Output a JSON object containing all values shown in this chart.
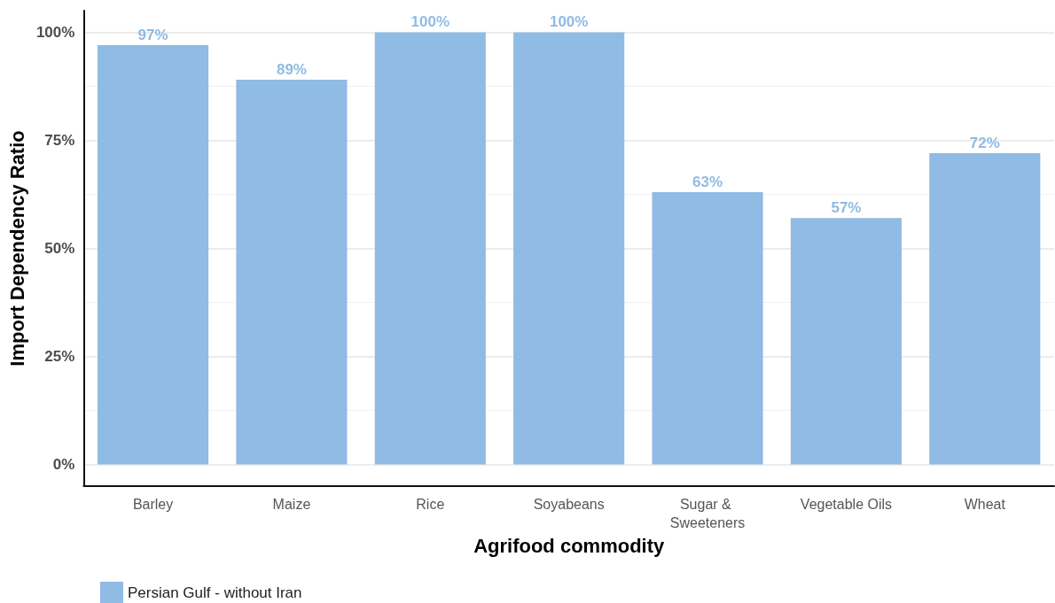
{
  "chart_data": {
    "type": "bar",
    "categories": [
      "Barley",
      "Maize",
      "Rice",
      "Soyabeans",
      "Sugar & Sweeteners",
      "Vegetable Oils",
      "Wheat"
    ],
    "series": [
      {
        "name": "Persian Gulf - without Iran",
        "color": "#8fbbe4",
        "values": [
          97,
          89,
          100,
          100,
          63,
          57,
          72
        ],
        "value_labels": [
          "97%",
          "89%",
          "100%",
          "100%",
          "63%",
          "57%",
          "72%"
        ]
      }
    ],
    "xlabel": "Agrifood commodity",
    "ylabel": "Import Dependency Ratio",
    "ylim": [
      -5,
      105
    ],
    "yticks": [
      {
        "value": 0,
        "label": "0%"
      },
      {
        "value": 25,
        "label": "25%"
      },
      {
        "value": 50,
        "label": "50%"
      },
      {
        "value": 75,
        "label": "75%"
      },
      {
        "value": 100,
        "label": "100%"
      }
    ],
    "grid": "y",
    "legend": "bottom left"
  }
}
